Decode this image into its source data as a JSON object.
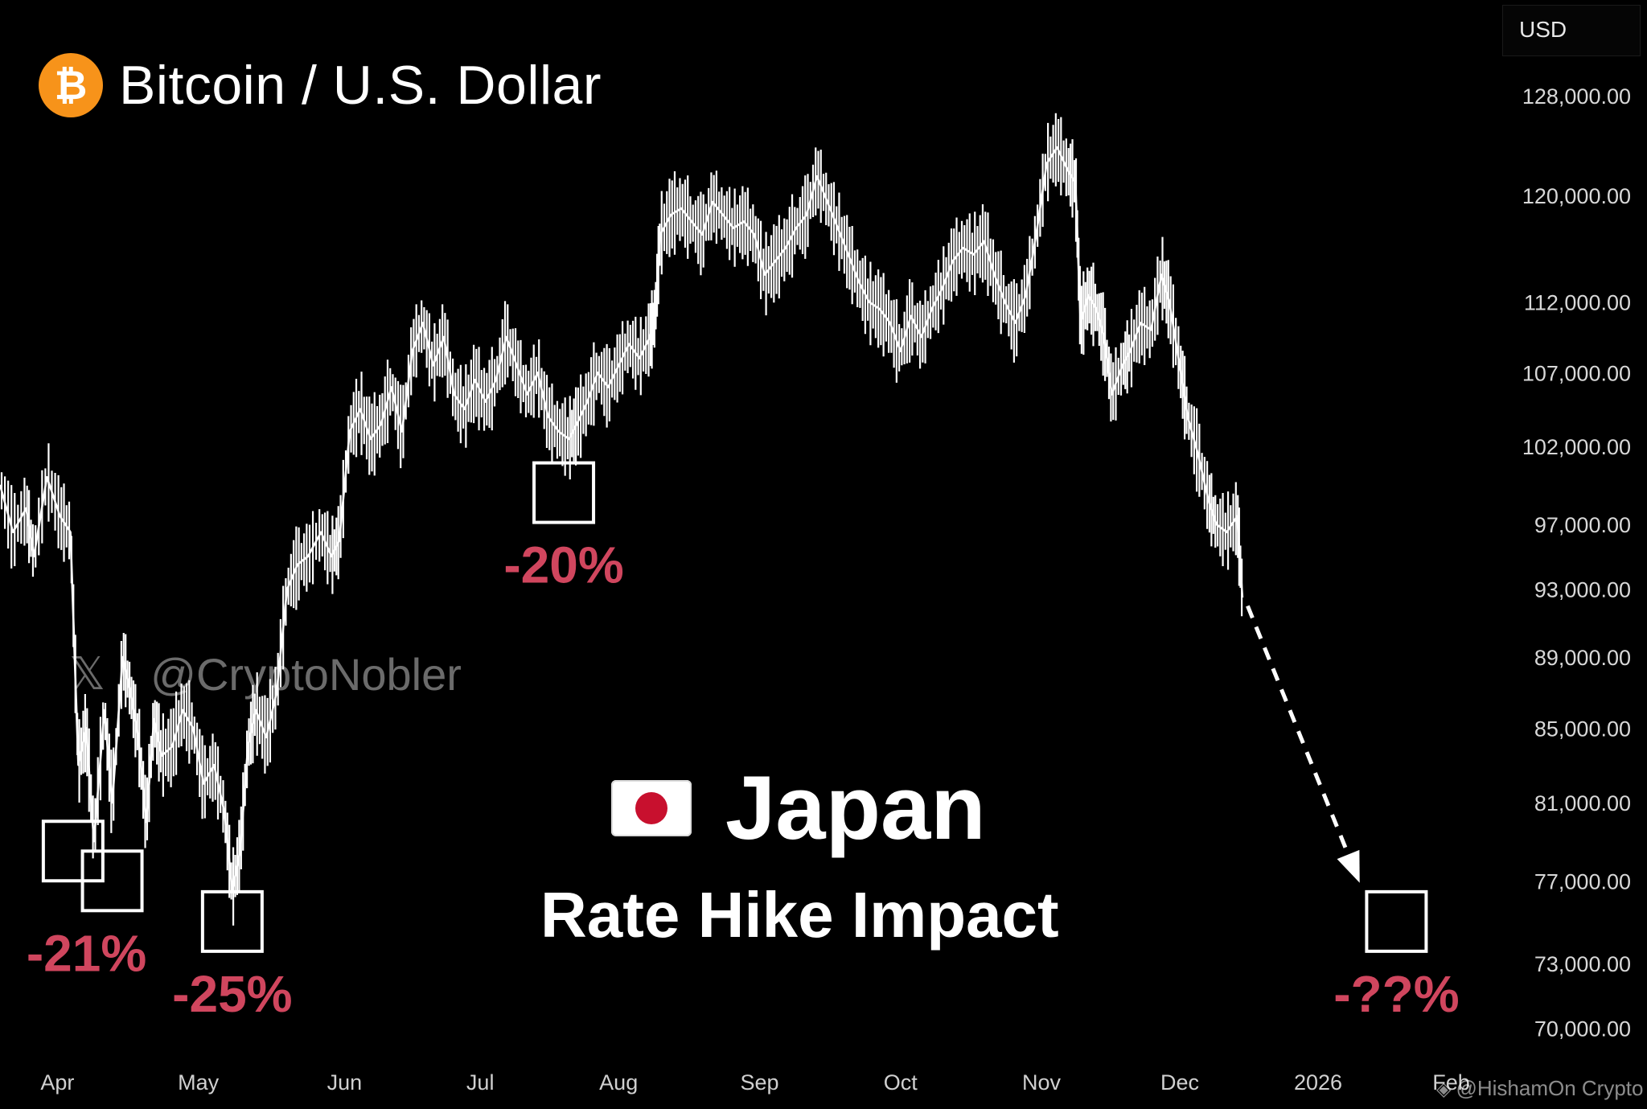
{
  "header": {
    "icon": "bitcoin-icon",
    "title": "Bitcoin / U.S. Dollar",
    "currency": "USD"
  },
  "watermark": {
    "icon": "x-logo-icon",
    "text": "@CryptoNobler"
  },
  "headline": {
    "flag": "japan-flag-icon",
    "title": "Japan",
    "subtitle": "Rate Hike Impact"
  },
  "credit": "@HishamOn Crypto",
  "colors": {
    "background": "#000000",
    "price_line": "#ffffff",
    "label_red": "#d0465e",
    "bitcoin_orange": "#f7931a"
  },
  "chart_data": {
    "type": "line",
    "series": [
      {
        "values": [
          [
            0.0,
            99500
          ],
          [
            0.5,
            96500
          ],
          [
            1.0,
            98000
          ],
          [
            1.3,
            95000
          ],
          [
            1.8,
            100000
          ],
          [
            2.3,
            97500
          ],
          [
            2.7,
            96500
          ],
          [
            3.0,
            83000
          ],
          [
            3.3,
            85000
          ],
          [
            3.6,
            79000
          ],
          [
            4.0,
            86000
          ],
          [
            4.3,
            81000
          ],
          [
            4.7,
            89000
          ],
          [
            5.0,
            87000
          ],
          [
            5.3,
            84500
          ],
          [
            5.6,
            80000
          ],
          [
            5.9,
            85500
          ],
          [
            6.2,
            83500
          ],
          [
            6.6,
            84000
          ],
          [
            7.0,
            86000
          ],
          [
            7.4,
            85000
          ],
          [
            7.8,
            82000
          ],
          [
            8.2,
            83000
          ],
          [
            8.6,
            80500
          ],
          [
            8.9,
            76500
          ],
          [
            9.2,
            78500
          ],
          [
            9.5,
            84000
          ],
          [
            9.8,
            86000
          ],
          [
            10.2,
            84500
          ],
          [
            10.6,
            87000
          ],
          [
            11.0,
            93000
          ],
          [
            11.4,
            94500
          ],
          [
            11.8,
            95000
          ],
          [
            12.3,
            96500
          ],
          [
            12.7,
            95000
          ],
          [
            13.0,
            96000
          ],
          [
            13.4,
            103000
          ],
          [
            13.8,
            104500
          ],
          [
            14.2,
            102500
          ],
          [
            14.6,
            103500
          ],
          [
            15.0,
            106000
          ],
          [
            15.4,
            103000
          ],
          [
            15.8,
            108500
          ],
          [
            16.2,
            110500
          ],
          [
            16.6,
            107500
          ],
          [
            17.0,
            109500
          ],
          [
            17.4,
            105500
          ],
          [
            17.8,
            104500
          ],
          [
            18.2,
            106500
          ],
          [
            18.6,
            105000
          ],
          [
            19.0,
            106500
          ],
          [
            19.4,
            109500
          ],
          [
            19.8,
            107500
          ],
          [
            20.2,
            105500
          ],
          [
            20.6,
            107000
          ],
          [
            21.0,
            104000
          ],
          [
            21.4,
            103000
          ],
          [
            21.8,
            102500
          ],
          [
            22.1,
            103500
          ],
          [
            22.5,
            105000
          ],
          [
            22.9,
            107000
          ],
          [
            23.3,
            106000
          ],
          [
            23.7,
            107500
          ],
          [
            24.1,
            109000
          ],
          [
            24.5,
            108000
          ],
          [
            24.9,
            109500
          ],
          [
            25.1,
            111000
          ],
          [
            25.3,
            117000
          ],
          [
            25.7,
            118500
          ],
          [
            26.1,
            119000
          ],
          [
            26.5,
            118000
          ],
          [
            26.9,
            117000
          ],
          [
            27.3,
            119500
          ],
          [
            27.7,
            118500
          ],
          [
            28.1,
            117500
          ],
          [
            28.5,
            118000
          ],
          [
            28.9,
            117000
          ],
          [
            29.3,
            114000
          ],
          [
            29.7,
            115000
          ],
          [
            30.1,
            116000
          ],
          [
            30.5,
            117500
          ],
          [
            30.9,
            118500
          ],
          [
            31.3,
            121500
          ],
          [
            31.7,
            119500
          ],
          [
            32.1,
            117500
          ],
          [
            32.5,
            115500
          ],
          [
            32.9,
            113500
          ],
          [
            33.3,
            112000
          ],
          [
            33.7,
            111500
          ],
          [
            34.1,
            110500
          ],
          [
            34.5,
            108500
          ],
          [
            34.9,
            111000
          ],
          [
            35.3,
            109500
          ],
          [
            35.7,
            111500
          ],
          [
            36.1,
            113000
          ],
          [
            36.5,
            115000
          ],
          [
            36.9,
            116000
          ],
          [
            37.3,
            115500
          ],
          [
            37.7,
            116500
          ],
          [
            38.1,
            114000
          ],
          [
            38.5,
            112000
          ],
          [
            38.9,
            110500
          ],
          [
            39.3,
            112500
          ],
          [
            39.7,
            117000
          ],
          [
            40.1,
            122500
          ],
          [
            40.5,
            123800
          ],
          [
            40.9,
            122000
          ],
          [
            41.2,
            121000
          ],
          [
            41.4,
            110500
          ],
          [
            41.7,
            112500
          ],
          [
            42.0,
            111500
          ],
          [
            42.3,
            109500
          ],
          [
            42.6,
            105500
          ],
          [
            43.0,
            107500
          ],
          [
            43.3,
            108500
          ],
          [
            43.7,
            110500
          ],
          [
            44.1,
            110000
          ],
          [
            44.5,
            114000
          ],
          [
            44.8,
            112000
          ],
          [
            45.2,
            107500
          ],
          [
            45.5,
            104000
          ],
          [
            45.9,
            101500
          ],
          [
            46.3,
            98500
          ],
          [
            46.6,
            97000
          ],
          [
            47.0,
            96500
          ],
          [
            47.4,
            97500
          ],
          [
            47.6,
            92500
          ]
        ]
      }
    ],
    "x_ticks": [
      "Apr",
      "May",
      "Jun",
      "Jul",
      "Aug",
      "Sep",
      "Oct",
      "Nov",
      "Dec",
      "2026",
      "Feb"
    ],
    "x_unit": "weeks from start of the chart",
    "y_ticks": [
      "128,000.00",
      "120,000.00",
      "112,000.00",
      "107,000.00",
      "102,000.00",
      "97,000.00",
      "93,000.00",
      "89,000.00",
      "85,000.00",
      "81,000.00",
      "77,000.00",
      "73,000.00",
      "70,000.00"
    ],
    "ylim": [
      68500,
      132000
    ],
    "y_scale": "log",
    "annotations": [
      {
        "label": "-21%",
        "x": 2.8,
        "y": 78500
      },
      {
        "label": "-21%",
        "x": 4.3,
        "y": 77000
      },
      {
        "label": "-25%",
        "x": 8.9,
        "y": 75000
      },
      {
        "label": "-20%",
        "x": 21.6,
        "y": 99000
      },
      {
        "label": "-??%",
        "x": 53.5,
        "y": 75000
      }
    ],
    "arrow": {
      "from": [
        47.8,
        92000
      ],
      "to": [
        52.0,
        77200
      ],
      "style": "dashed"
    }
  }
}
